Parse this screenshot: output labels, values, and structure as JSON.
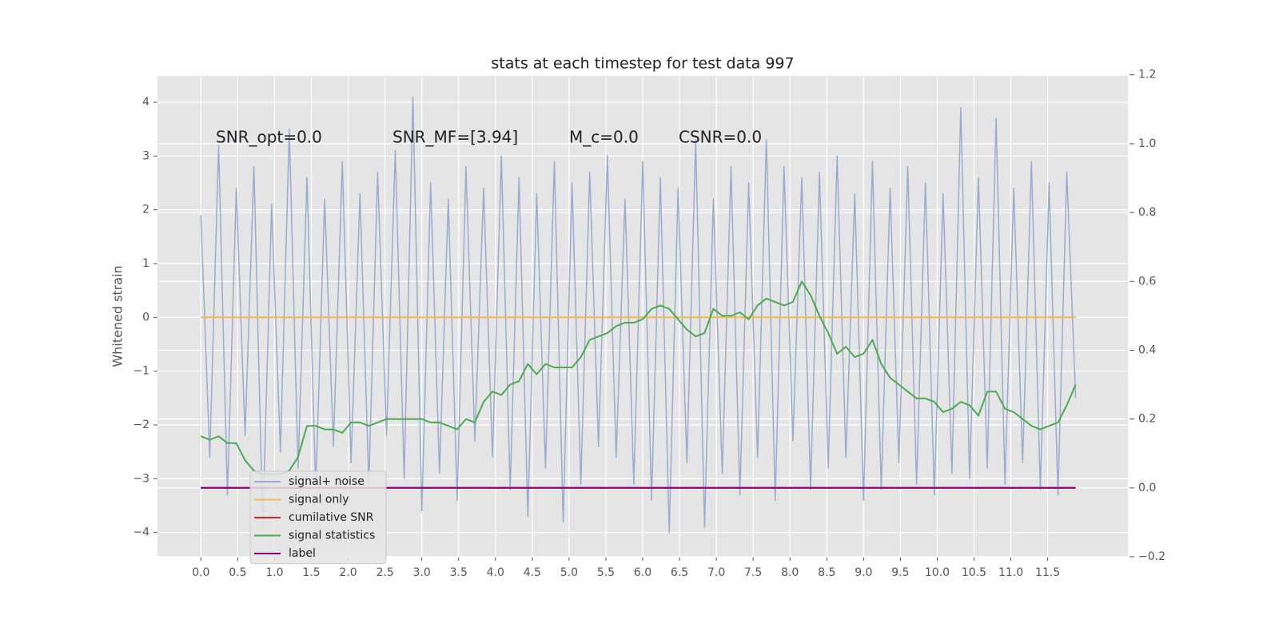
{
  "chart_data": {
    "type": "line",
    "title": "stats at each timestep for test data 997",
    "y_label": "Whitened strain",
    "annotations": [
      "SNR_opt=0.0",
      "SNR_MF=[3.94]",
      "M_c=0.0",
      "CSNR=0.0"
    ],
    "x": [
      0.0,
      0.12,
      0.24,
      0.36,
      0.48,
      0.6,
      0.72,
      0.84,
      0.96,
      1.08,
      1.2,
      1.32,
      1.44,
      1.56,
      1.68,
      1.8,
      1.92,
      2.04,
      2.16,
      2.28,
      2.4,
      2.52,
      2.64,
      2.76,
      2.88,
      3.0,
      3.12,
      3.24,
      3.36,
      3.48,
      3.6,
      3.72,
      3.84,
      3.96,
      4.08,
      4.2,
      4.32,
      4.44,
      4.56,
      4.68,
      4.8,
      4.92,
      5.04,
      5.16,
      5.28,
      5.4,
      5.52,
      5.64,
      5.76,
      5.88,
      6.0,
      6.12,
      6.24,
      6.36,
      6.48,
      6.6,
      6.72,
      6.84,
      6.96,
      7.08,
      7.2,
      7.32,
      7.44,
      7.56,
      7.68,
      7.8,
      7.92,
      8.04,
      8.16,
      8.28,
      8.4,
      8.52,
      8.64,
      8.76,
      8.88,
      9.0,
      9.12,
      9.24,
      9.36,
      9.48,
      9.6,
      9.72,
      9.84,
      9.96,
      10.08,
      10.2,
      10.32,
      10.44,
      10.56,
      10.68,
      10.8,
      10.92,
      11.04,
      11.16,
      11.28,
      11.4,
      11.52,
      11.64,
      11.76,
      11.88
    ],
    "series": [
      {
        "name": "signal+ noise",
        "color": "#98acd0",
        "axis": "y",
        "values": [
          1.9,
          -2.6,
          3.2,
          -3.3,
          2.4,
          -2.2,
          2.8,
          -3.9,
          2.1,
          -2.5,
          3.5,
          -2.8,
          2.6,
          -3.2,
          2.2,
          -2.4,
          2.9,
          -2.7,
          2.3,
          -3.1,
          2.7,
          -2.2,
          3.1,
          -3.0,
          4.1,
          -3.6,
          2.5,
          -2.9,
          2.2,
          -3.4,
          2.8,
          -2.3,
          2.4,
          -2.6,
          3.0,
          -3.2,
          2.6,
          -3.7,
          2.3,
          -2.8,
          2.9,
          -3.8,
          2.5,
          -3.1,
          2.7,
          -2.4,
          3.0,
          -2.6,
          2.2,
          -3.1,
          2.9,
          -3.4,
          2.6,
          -4.0,
          2.4,
          -2.7,
          3.3,
          -3.9,
          2.2,
          -2.9,
          2.8,
          -3.3,
          2.5,
          -2.6,
          3.3,
          -3.4,
          2.8,
          -2.3,
          2.6,
          -3.2,
          2.7,
          -2.8,
          3.0,
          -2.6,
          2.3,
          -3.4,
          2.9,
          -3.2,
          2.4,
          -2.7,
          2.8,
          -3.1,
          2.5,
          -3.3,
          2.3,
          -2.9,
          3.9,
          -3.0,
          2.6,
          -2.8,
          3.7,
          -3.1,
          2.4,
          -2.7,
          2.9,
          -3.2,
          2.5,
          -3.3,
          2.7,
          -1.5
        ]
      },
      {
        "name": "signal only",
        "color": "#f2b94f",
        "axis": "y",
        "values": [
          0,
          0,
          0,
          0,
          0,
          0,
          0,
          0,
          0,
          0,
          0,
          0,
          0,
          0,
          0,
          0,
          0,
          0,
          0,
          0,
          0,
          0,
          0,
          0,
          0,
          0,
          0,
          0,
          0,
          0,
          0,
          0,
          0,
          0,
          0,
          0,
          0,
          0,
          0,
          0,
          0,
          0,
          0,
          0,
          0,
          0,
          0,
          0,
          0,
          0,
          0,
          0,
          0,
          0,
          0,
          0,
          0,
          0,
          0,
          0,
          0,
          0,
          0,
          0,
          0,
          0,
          0,
          0,
          0,
          0,
          0,
          0,
          0,
          0,
          0,
          0,
          0,
          0,
          0,
          0,
          0,
          0,
          0,
          0,
          0,
          0,
          0,
          0,
          0,
          0,
          0,
          0,
          0,
          0,
          0,
          0,
          0,
          0,
          0,
          0
        ]
      },
      {
        "name": "cumilative SNR",
        "color": "#d62728",
        "axis": "y2",
        "values": [
          0,
          0,
          0,
          0,
          0,
          0,
          0,
          0,
          0,
          0,
          0,
          0,
          0,
          0,
          0,
          0,
          0,
          0,
          0,
          0,
          0,
          0,
          0,
          0,
          0,
          0,
          0,
          0,
          0,
          0,
          0,
          0,
          0,
          0,
          0,
          0,
          0,
          0,
          0,
          0,
          0,
          0,
          0,
          0,
          0,
          0,
          0,
          0,
          0,
          0,
          0,
          0,
          0,
          0,
          0,
          0,
          0,
          0,
          0,
          0,
          0,
          0,
          0,
          0,
          0,
          0,
          0,
          0,
          0,
          0,
          0,
          0,
          0,
          0,
          0,
          0,
          0,
          0,
          0,
          0,
          0,
          0,
          0,
          0,
          0,
          0,
          0,
          0,
          0,
          0,
          0,
          0,
          0,
          0,
          0,
          0,
          0,
          0,
          0,
          0
        ]
      },
      {
        "name": "signal statistics",
        "color": "#4caa50",
        "axis": "y2",
        "values": [
          0.15,
          0.14,
          0.15,
          0.13,
          0.13,
          0.08,
          0.05,
          0.04,
          0.04,
          0.04,
          0.05,
          0.09,
          0.18,
          0.18,
          0.17,
          0.17,
          0.16,
          0.19,
          0.19,
          0.18,
          0.19,
          0.2,
          0.2,
          0.2,
          0.2,
          0.2,
          0.19,
          0.19,
          0.18,
          0.17,
          0.2,
          0.19,
          0.25,
          0.28,
          0.27,
          0.3,
          0.31,
          0.36,
          0.33,
          0.36,
          0.35,
          0.35,
          0.35,
          0.38,
          0.43,
          0.44,
          0.45,
          0.47,
          0.48,
          0.48,
          0.49,
          0.52,
          0.53,
          0.52,
          0.49,
          0.46,
          0.44,
          0.45,
          0.52,
          0.5,
          0.5,
          0.51,
          0.49,
          0.53,
          0.55,
          0.54,
          0.53,
          0.54,
          0.6,
          0.56,
          0.5,
          0.45,
          0.39,
          0.41,
          0.38,
          0.39,
          0.43,
          0.36,
          0.32,
          0.3,
          0.28,
          0.26,
          0.26,
          0.25,
          0.22,
          0.23,
          0.25,
          0.24,
          0.21,
          0.28,
          0.28,
          0.23,
          0.22,
          0.2,
          0.18,
          0.17,
          0.18,
          0.19,
          0.24,
          0.3
        ]
      },
      {
        "name": "label",
        "color": "#800080",
        "axis": "y2",
        "values": [
          0,
          0,
          0,
          0,
          0,
          0,
          0,
          0,
          0,
          0,
          0,
          0,
          0,
          0,
          0,
          0,
          0,
          0,
          0,
          0,
          0,
          0,
          0,
          0,
          0,
          0,
          0,
          0,
          0,
          0,
          0,
          0,
          0,
          0,
          0,
          0,
          0,
          0,
          0,
          0,
          0,
          0,
          0,
          0,
          0,
          0,
          0,
          0,
          0,
          0,
          0,
          0,
          0,
          0,
          0,
          0,
          0,
          0,
          0,
          0,
          0,
          0,
          0,
          0,
          0,
          0,
          0,
          0,
          0,
          0,
          0,
          0,
          0,
          0,
          0,
          0,
          0,
          0,
          0,
          0,
          0,
          0,
          0,
          0,
          0,
          0,
          0,
          0,
          0,
          0,
          0,
          0,
          0,
          0,
          0,
          0,
          0,
          0,
          0,
          0
        ]
      }
    ],
    "xlim": [
      -0.59,
      12.59
    ],
    "xticks": [
      {
        "value": 0,
        "label": "0.0"
      },
      {
        "value": 0.5,
        "label": "0.5"
      },
      {
        "value": 1,
        "label": "1.0"
      },
      {
        "value": 1.5,
        "label": "1.5"
      },
      {
        "value": 2,
        "label": "2.0"
      },
      {
        "value": 2.5,
        "label": "2.5"
      },
      {
        "value": 3,
        "label": "3.0"
      },
      {
        "value": 3.5,
        "label": "3.5"
      },
      {
        "value": 4,
        "label": "4.0"
      },
      {
        "value": 4.5,
        "label": "4.5"
      },
      {
        "value": 5,
        "label": "5.0"
      },
      {
        "value": 5.5,
        "label": "5.5"
      },
      {
        "value": 6,
        "label": "6.0"
      },
      {
        "value": 6.5,
        "label": "6.5"
      },
      {
        "value": 7,
        "label": "7.0"
      },
      {
        "value": 7.5,
        "label": "7.5"
      },
      {
        "value": 8,
        "label": "8.0"
      },
      {
        "value": 8.5,
        "label": "8.5"
      },
      {
        "value": 9,
        "label": "9.0"
      },
      {
        "value": 9.5,
        "label": "9.5"
      },
      {
        "value": 10,
        "label": "10.0"
      },
      {
        "value": 10.5,
        "label": "10.5"
      },
      {
        "value": 11,
        "label": "11.0"
      },
      {
        "value": 11.5,
        "label": "11.5"
      }
    ],
    "ylim": [
      -4.45,
      4.49
    ],
    "yticks": [
      {
        "value": -4,
        "label": "−4"
      },
      {
        "value": -3,
        "label": "−3"
      },
      {
        "value": -2,
        "label": "−2"
      },
      {
        "value": -1,
        "label": "−1"
      },
      0,
      1,
      2,
      3,
      4
    ],
    "y2lim": [
      -0.2,
      1.197
    ],
    "y2ticks": [
      {
        "value": -0.2,
        "label": "−0.2"
      },
      {
        "value": 0,
        "label": "0.0"
      },
      {
        "value": 0.2,
        "label": "0.2"
      },
      {
        "value": 0.4,
        "label": "0.4"
      },
      {
        "value": 0.6,
        "label": "0.6"
      },
      {
        "value": 0.8,
        "label": "0.8"
      },
      {
        "value": 1,
        "label": "1.0"
      },
      {
        "value": 1.2,
        "label": "1.2"
      }
    ],
    "grid": true,
    "legend": "lower left"
  }
}
